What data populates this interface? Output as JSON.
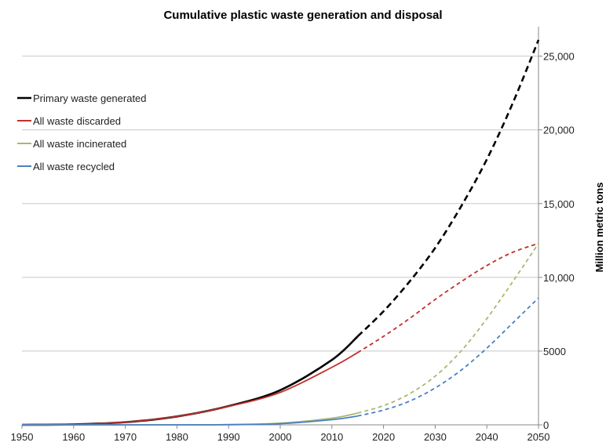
{
  "chart_data": {
    "type": "line",
    "title": "Cumulative plastic waste generation and disposal",
    "ylabel": "Million metric tons",
    "xlabel": "",
    "xlim": [
      1950,
      2050
    ],
    "ylim": [
      0,
      27000
    ],
    "x_ticks": [
      "1950",
      "1960",
      "1970",
      "1980",
      "1990",
      "2000",
      "2010",
      "2020",
      "2030",
      "2040",
      "2050"
    ],
    "y_ticks": [
      {
        "value": 0,
        "label": "0"
      },
      {
        "value": 5000,
        "label": "5000"
      },
      {
        "value": 10000,
        "label": "10,000"
      },
      {
        "value": 15000,
        "label": "15,000"
      },
      {
        "value": 20000,
        "label": "20,000"
      },
      {
        "value": 25000,
        "label": "25,000"
      }
    ],
    "grid": "horizontal",
    "y_axis_side": "right",
    "legend_position": "top-left",
    "projection_start": 2015,
    "series": [
      {
        "name": "Primary waste generated",
        "color": "#000000",
        "points": [
          [
            1950,
            0
          ],
          [
            1960,
            30
          ],
          [
            1970,
            180
          ],
          [
            1980,
            570
          ],
          [
            1990,
            1270
          ],
          [
            2000,
            2350
          ],
          [
            2010,
            4400
          ],
          [
            2015,
            6000
          ],
          [
            2020,
            7700
          ],
          [
            2025,
            9700
          ],
          [
            2030,
            12000
          ],
          [
            2035,
            14800
          ],
          [
            2040,
            18000
          ],
          [
            2045,
            21800
          ],
          [
            2050,
            26100
          ]
        ]
      },
      {
        "name": "All waste discarded",
        "color": "#c0302b",
        "points": [
          [
            1950,
            0
          ],
          [
            1960,
            30
          ],
          [
            1970,
            180
          ],
          [
            1980,
            570
          ],
          [
            1990,
            1250
          ],
          [
            2000,
            2200
          ],
          [
            2010,
            3900
          ],
          [
            2015,
            4900
          ],
          [
            2020,
            6000
          ],
          [
            2025,
            7200
          ],
          [
            2030,
            8500
          ],
          [
            2035,
            9700
          ],
          [
            2040,
            10800
          ],
          [
            2045,
            11700
          ],
          [
            2050,
            12300
          ]
        ]
      },
      {
        "name": "All waste incinerated",
        "color": "#a8b870",
        "points": [
          [
            1950,
            0
          ],
          [
            1980,
            0
          ],
          [
            1990,
            20
          ],
          [
            2000,
            110
          ],
          [
            2010,
            450
          ],
          [
            2015,
            800
          ],
          [
            2020,
            1300
          ],
          [
            2025,
            2100
          ],
          [
            2030,
            3300
          ],
          [
            2035,
            5000
          ],
          [
            2040,
            7200
          ],
          [
            2045,
            9700
          ],
          [
            2050,
            12300
          ]
        ]
      },
      {
        "name": "All waste recycled",
        "color": "#4a80c4",
        "points": [
          [
            1950,
            0
          ],
          [
            1980,
            0
          ],
          [
            1990,
            10
          ],
          [
            2000,
            80
          ],
          [
            2010,
            350
          ],
          [
            2015,
            600
          ],
          [
            2020,
            1000
          ],
          [
            2025,
            1600
          ],
          [
            2030,
            2500
          ],
          [
            2035,
            3700
          ],
          [
            2040,
            5200
          ],
          [
            2045,
            6900
          ],
          [
            2050,
            8600
          ]
        ]
      }
    ]
  }
}
